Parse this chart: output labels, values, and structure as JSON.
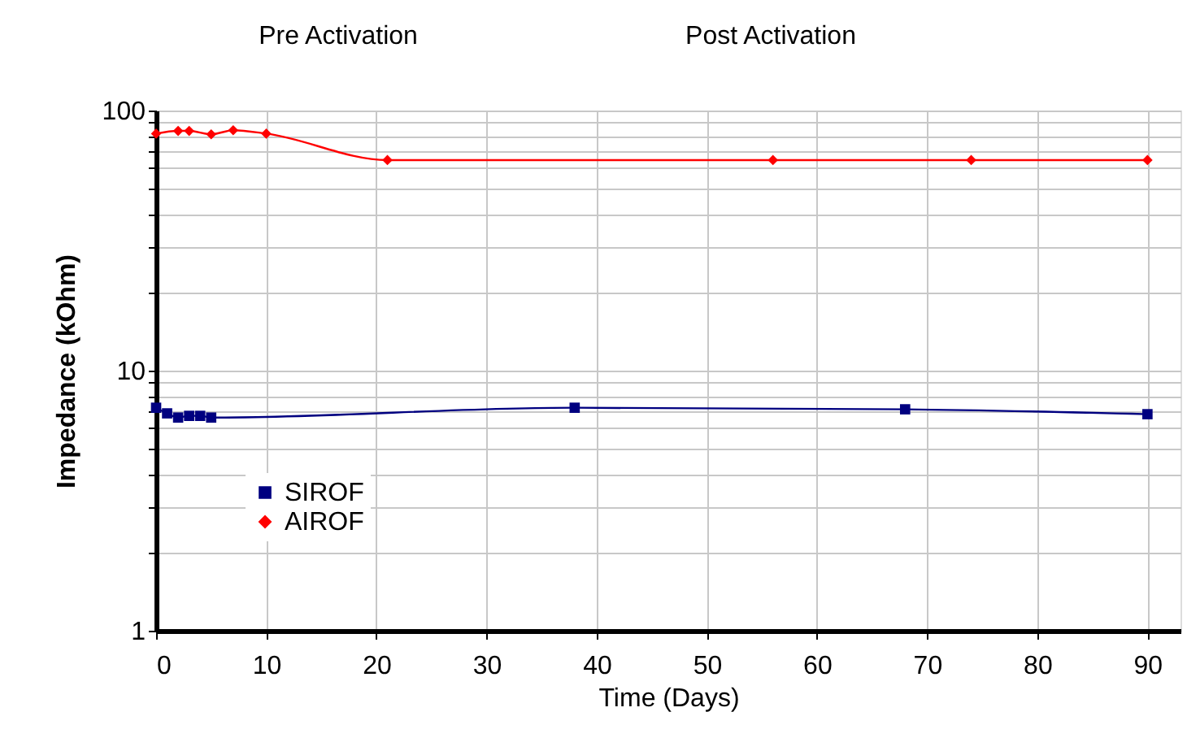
{
  "chart_data": {
    "type": "line",
    "xlabel": "Time (Days)",
    "ylabel": "Impedance (kOhm)",
    "annotations": [
      "Pre Activation",
      "Post Activation"
    ],
    "series": [
      {
        "name": "SIROF",
        "color": "#000080",
        "marker": "square",
        "x": [
          0,
          1,
          2,
          3,
          4,
          5,
          38,
          68,
          90
        ],
        "values": [
          7.2,
          6.85,
          6.6,
          6.7,
          6.7,
          6.6,
          7.2,
          7.1,
          6.8
        ]
      },
      {
        "name": "AIROF",
        "color": "#ff0000",
        "marker": "diamond",
        "x": [
          0,
          2,
          3,
          5,
          7,
          10,
          21,
          56,
          74,
          90
        ],
        "values": [
          81.5,
          83.5,
          83.5,
          81,
          84,
          81.5,
          64.5,
          64.5,
          64.5,
          64.5
        ]
      }
    ],
    "xlim": [
      0,
      93
    ],
    "xticks": [
      0,
      10,
      20,
      30,
      40,
      50,
      60,
      70,
      80,
      90
    ],
    "ylim": [
      1,
      100
    ],
    "yticks": [
      1,
      {
        "value": 2,
        "label": null
      },
      {
        "value": 3,
        "label": null
      },
      {
        "value": 4,
        "label": null
      },
      {
        "value": 5,
        "label": null
      },
      {
        "value": 6,
        "label": null
      },
      {
        "value": 7,
        "label": null
      },
      {
        "value": 8,
        "label": null
      },
      {
        "value": 9,
        "label": null
      },
      10,
      {
        "value": 20,
        "label": null
      },
      {
        "value": 30,
        "label": null
      },
      {
        "value": 40,
        "label": null
      },
      {
        "value": 50,
        "label": null
      },
      {
        "value": 60,
        "label": null
      },
      {
        "value": 70,
        "label": null
      },
      {
        "value": 80,
        "label": null
      },
      {
        "value": 90,
        "label": null
      },
      100
    ],
    "log": "y",
    "grid": true,
    "legend": "bottom left"
  }
}
